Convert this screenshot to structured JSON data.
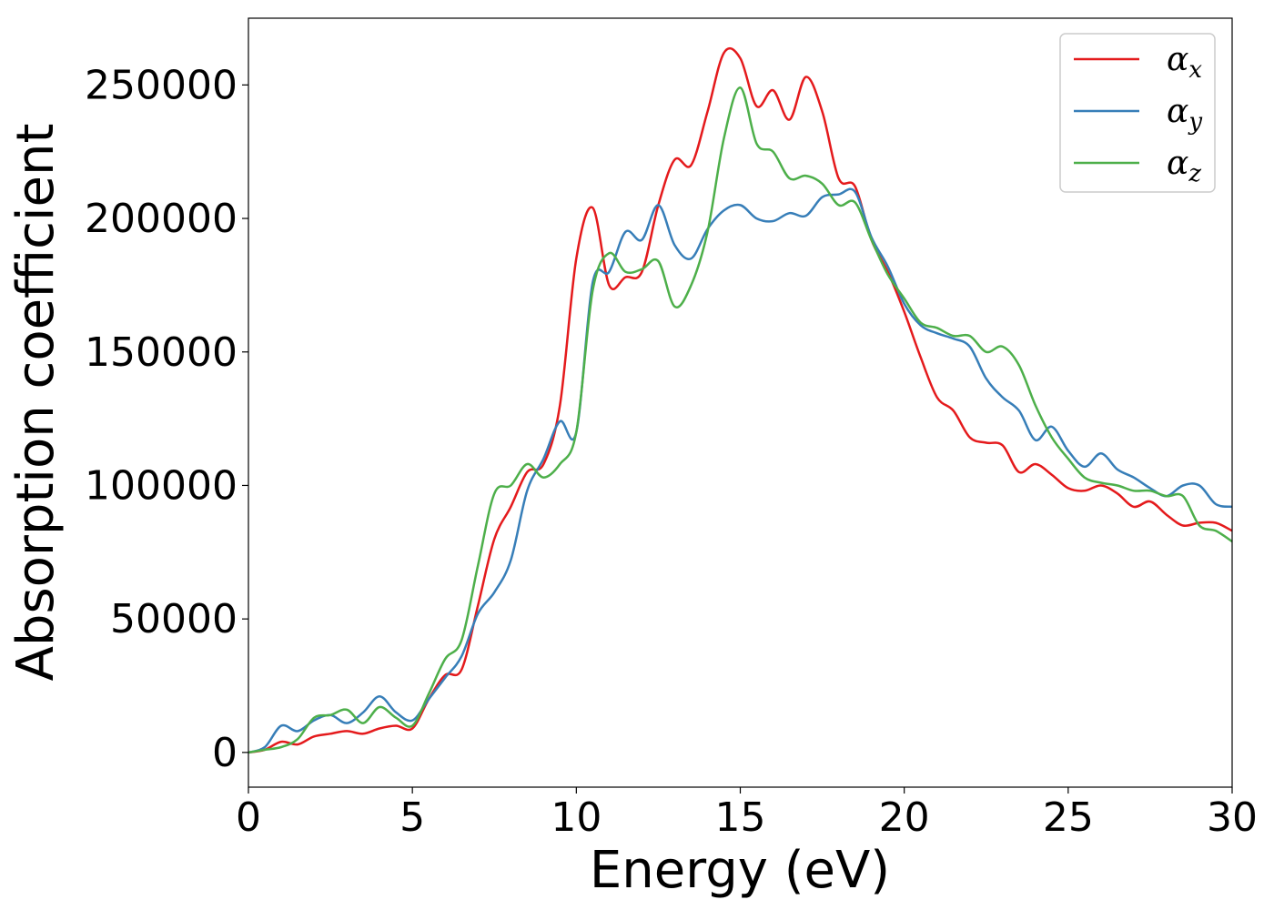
{
  "chart_data": {
    "type": "line",
    "title": "",
    "xlabel": "Energy (eV)",
    "ylabel": "Absorption coefficient",
    "xlim": [
      0,
      30
    ],
    "ylim": [
      -13000,
      275000
    ],
    "xticks": [
      0,
      5,
      10,
      15,
      20,
      25,
      30
    ],
    "yticks": [
      0,
      50000,
      100000,
      150000,
      200000,
      250000
    ],
    "grid": false,
    "legend_position": "top-right",
    "series": [
      {
        "name": "αx",
        "legend_base": "α",
        "legend_sub": "x",
        "color": "#e41a1c",
        "x": [
          0,
          0.5,
          1,
          1.5,
          2,
          2.5,
          3,
          3.5,
          4,
          4.5,
          5,
          5.5,
          6,
          6.5,
          7,
          7.5,
          8,
          8.5,
          9,
          9.5,
          10,
          10.5,
          11,
          11.5,
          12,
          12.5,
          13,
          13.5,
          14,
          14.5,
          15,
          15.5,
          16,
          16.5,
          17,
          17.5,
          18,
          18.5,
          19,
          19.5,
          20,
          20.5,
          21,
          21.5,
          22,
          22.5,
          23,
          23.5,
          24,
          24.5,
          25,
          25.5,
          26,
          26.5,
          27,
          27.5,
          28,
          28.5,
          29,
          29.5,
          30
        ],
        "y": [
          0,
          1000,
          4000,
          3000,
          6000,
          7000,
          8000,
          7000,
          9000,
          10000,
          9000,
          20000,
          29000,
          31000,
          55000,
          80000,
          92000,
          105000,
          108000,
          130000,
          185000,
          204000,
          175000,
          178000,
          180000,
          205000,
          222000,
          220000,
          240000,
          262000,
          260000,
          242000,
          248000,
          237000,
          253000,
          240000,
          215000,
          212000,
          192000,
          180000,
          165000,
          148000,
          133000,
          128000,
          118000,
          116000,
          115000,
          105000,
          108000,
          104000,
          99000,
          98000,
          100000,
          97000,
          92000,
          94000,
          89000,
          85000,
          86000,
          86000,
          83000
        ]
      },
      {
        "name": "αy",
        "legend_base": "α",
        "legend_sub": "y",
        "color": "#377eb8",
        "x": [
          0,
          0.5,
          1,
          1.5,
          2,
          2.5,
          3,
          3.5,
          4,
          4.5,
          5,
          5.5,
          6,
          6.5,
          7,
          7.5,
          8,
          8.5,
          9,
          9.5,
          10,
          10.5,
          11,
          11.5,
          12,
          12.5,
          13,
          13.5,
          14,
          14.5,
          15,
          15.5,
          16,
          16.5,
          17,
          17.5,
          18,
          18.5,
          19,
          19.5,
          20,
          20.5,
          21,
          21.5,
          22,
          22.5,
          23,
          23.5,
          24,
          24.5,
          25,
          25.5,
          26,
          26.5,
          27,
          27.5,
          28,
          28.5,
          29,
          29.5,
          30
        ],
        "y": [
          0,
          2000,
          10000,
          8000,
          12000,
          14000,
          11000,
          15000,
          21000,
          15000,
          12000,
          20000,
          28000,
          36000,
          52000,
          60000,
          72000,
          98000,
          110000,
          124000,
          120000,
          176000,
          180000,
          195000,
          192000,
          205000,
          190000,
          185000,
          196000,
          203000,
          205000,
          200000,
          199000,
          202000,
          201000,
          208000,
          209000,
          210000,
          193000,
          182000,
          168000,
          160000,
          157000,
          155000,
          152000,
          140000,
          133000,
          128000,
          117000,
          122000,
          113000,
          107000,
          112000,
          106000,
          103000,
          99000,
          96000,
          100000,
          100000,
          93000,
          92000
        ]
      },
      {
        "name": "αz",
        "legend_base": "α",
        "legend_sub": "z",
        "color": "#4daf4a",
        "x": [
          0,
          0.5,
          1,
          1.5,
          2,
          2.5,
          3,
          3.5,
          4,
          4.5,
          5,
          5.5,
          6,
          6.5,
          7,
          7.5,
          8,
          8.5,
          9,
          9.5,
          10,
          10.5,
          11,
          11.5,
          12,
          12.5,
          13,
          13.5,
          14,
          14.5,
          15,
          15.5,
          16,
          16.5,
          17,
          17.5,
          18,
          18.5,
          19,
          19.5,
          20,
          20.5,
          21,
          21.5,
          22,
          22.5,
          23,
          23.5,
          24,
          24.5,
          25,
          25.5,
          26,
          26.5,
          27,
          27.5,
          28,
          28.5,
          29,
          29.5,
          30
        ],
        "y": [
          0,
          1000,
          2000,
          5000,
          13000,
          14000,
          16000,
          11000,
          17000,
          13000,
          10000,
          22000,
          35000,
          42000,
          70000,
          97000,
          100000,
          108000,
          103000,
          108000,
          120000,
          173000,
          187000,
          180000,
          181000,
          184000,
          167000,
          175000,
          195000,
          230000,
          249000,
          228000,
          225000,
          215000,
          216000,
          213000,
          205000,
          206000,
          192000,
          179000,
          170000,
          161000,
          159000,
          156000,
          156000,
          150000,
          152000,
          145000,
          130000,
          118000,
          110000,
          103000,
          101000,
          100000,
          98000,
          98000,
          96000,
          96000,
          85000,
          83000,
          79000
        ]
      }
    ]
  }
}
